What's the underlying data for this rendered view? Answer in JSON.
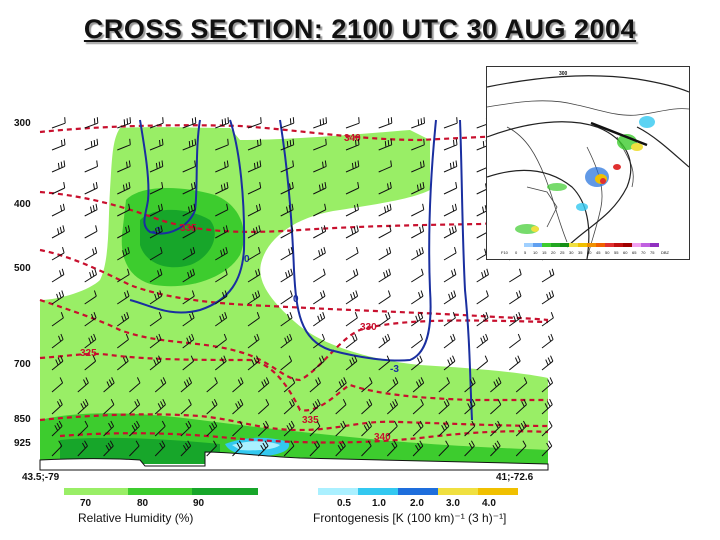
{
  "title": "CROSS SECTION:  2100 UTC 30 AUG 2004",
  "chart_data": {
    "type": "heatmap",
    "title": "CROSS SECTION:  2100 UTC 30 AUG 2004",
    "y_axis": {
      "label": "",
      "scale": "pressure (log), decreasing upward",
      "ticks": [
        "300",
        "400",
        "500",
        "700",
        "850",
        "925"
      ]
    },
    "x_axis": {
      "left_endpoint": "43.5;-79",
      "right_endpoint": "41;-72.6"
    },
    "shading": {
      "field": "Relative Humidity (%)",
      "levels": [
        70,
        80,
        90
      ],
      "level_labels": [
        "70",
        "80",
        "90"
      ],
      "colors": [
        "#99ee66",
        "#3dcc2e",
        "#17a62a"
      ]
    },
    "frontogenesis": {
      "field": "Frontogenesis [K (100 km)⁻¹ (3 h)⁻¹]",
      "levels": [
        0.5,
        1.0,
        2.0,
        3.0,
        4.0
      ],
      "level_labels": [
        "0.5",
        "1.0",
        "2.0",
        "3.0",
        "4.0"
      ],
      "colors": [
        "#aaf0ff",
        "#33c8f0",
        "#1e6edc",
        "#f0e040",
        "#f0c000"
      ]
    },
    "theta_contours": {
      "color": "#c8102e",
      "labels": [
        "340",
        "335",
        "330",
        "325",
        "335",
        "340"
      ]
    },
    "vertical_motion_contours": {
      "color": "#1a2fa0",
      "labels": [
        "-3",
        "0",
        "0",
        "-3"
      ]
    },
    "wind_barbs": true,
    "inset_map": {
      "label": "300",
      "colorbar_ticks": [
        "F10",
        "0",
        "5",
        "10",
        "15",
        "20",
        "25",
        "30",
        "35",
        "40",
        "45",
        "50",
        "55",
        "60",
        "65",
        "70",
        "75",
        "DBZ"
      ]
    },
    "grid": false
  },
  "colors": {
    "title": "#111111",
    "theta": "#c8102e",
    "omega": "#1a2fa0"
  },
  "icons": {
    "barbs": "wind-barb-icon"
  }
}
